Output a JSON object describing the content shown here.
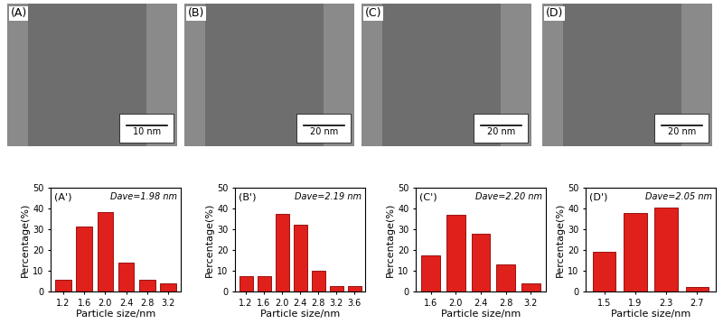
{
  "chart_data": [
    {
      "type": "bar",
      "title": "(A')",
      "subtitle": "Dave=1.98 nm",
      "categories": [
        "1.2",
        "1.6",
        "2.0",
        "2.4",
        "2.8",
        "3.2"
      ],
      "values": [
        5.5,
        31.5,
        38.5,
        14,
        5.5,
        4
      ],
      "color": "#e0201b",
      "x_label": "Particle size/nm",
      "y_label": "Percentage(%)",
      "ylim": [
        0,
        50
      ],
      "yticks": [
        0,
        10,
        20,
        30,
        40,
        50
      ]
    },
    {
      "type": "bar",
      "title": "(B')",
      "subtitle": "Dave=2.19 nm",
      "categories": [
        "1.2",
        "1.6",
        "2.0",
        "2.4",
        "2.8",
        "3.2",
        "3.6"
      ],
      "values": [
        7.5,
        7.5,
        37.5,
        32.5,
        10,
        2.5,
        2.5
      ],
      "color": "#e0201b",
      "x_label": "Particle size/nm",
      "y_label": "Percentage(%)",
      "ylim": [
        0,
        50
      ],
      "yticks": [
        0,
        10,
        20,
        30,
        40,
        50
      ]
    },
    {
      "type": "bar",
      "title": "(C')",
      "subtitle": "Dave=2.20 nm",
      "categories": [
        "1.6",
        "2.0",
        "2.4",
        "2.8",
        "3.2"
      ],
      "values": [
        17.5,
        37,
        28,
        13,
        4
      ],
      "color": "#e0201b",
      "x_label": "Particle size/nm",
      "y_label": "Percentage(%)",
      "ylim": [
        0,
        50
      ],
      "yticks": [
        0,
        10,
        20,
        30,
        40,
        50
      ]
    },
    {
      "type": "bar",
      "title": "(D')",
      "subtitle": "Dave=2.05 nm",
      "categories": [
        "1.5",
        "1.9",
        "2.3",
        "2.7"
      ],
      "values": [
        19,
        38,
        40.5,
        2
      ],
      "color": "#e0201b",
      "x_label": "Particle size/nm",
      "y_label": "Percentage(%)",
      "ylim": [
        0,
        50
      ],
      "yticks": [
        0,
        10,
        20,
        30,
        40,
        50
      ]
    }
  ],
  "images": [
    {
      "label": "(A)",
      "scale_bar": "10 nm"
    },
    {
      "label": "(B)",
      "scale_bar": "20 nm"
    },
    {
      "label": "(C)",
      "scale_bar": "20 nm"
    },
    {
      "label": "(D)",
      "scale_bar": "20 nm"
    }
  ]
}
